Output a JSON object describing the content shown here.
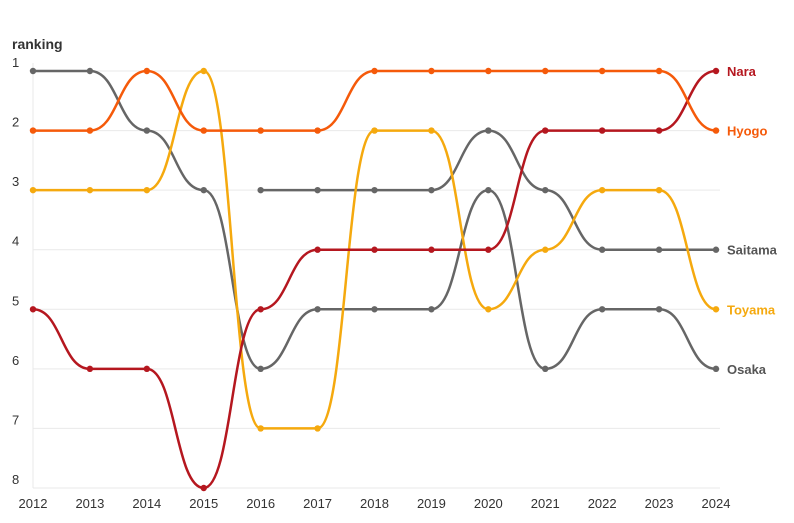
{
  "chart_data": {
    "type": "line",
    "title": "",
    "xlabel": "",
    "ylabel": "ranking",
    "x": [
      "2012",
      "2013",
      "2014",
      "2015",
      "2016",
      "2017",
      "2018",
      "2019",
      "2020",
      "2021",
      "2022",
      "2023",
      "2024"
    ],
    "y_ticks": [
      "1",
      "2",
      "3",
      "4",
      "5",
      "6",
      "7",
      "8"
    ],
    "ylim": [
      1,
      8
    ],
    "y_inverted": true,
    "grid": true,
    "legend": "labels at right end of lines",
    "series": [
      {
        "name": "Saitama",
        "color": "#666666",
        "values": [
          null,
          null,
          null,
          null,
          3,
          3,
          3,
          3,
          2,
          3,
          4,
          4,
          4
        ]
      },
      {
        "name": "Osaka",
        "color": "#666666",
        "values": [
          1,
          1,
          2,
          3,
          6,
          5,
          5,
          5,
          3,
          6,
          5,
          5,
          6
        ]
      },
      {
        "name": "Toyama",
        "color": "#f5a90e",
        "values": [
          3,
          3,
          3,
          1,
          7,
          7,
          2,
          2,
          5,
          4,
          3,
          3,
          5
        ]
      },
      {
        "name": "Nara",
        "color": "#b5171f",
        "values": [
          5,
          6,
          6,
          8,
          5,
          4,
          4,
          4,
          4,
          2,
          2,
          2,
          1
        ]
      },
      {
        "name": "Hyogo",
        "color": "#f55a0a",
        "values": [
          2,
          2,
          1,
          2,
          2,
          2,
          1,
          1,
          1,
          1,
          1,
          1,
          2
        ]
      }
    ]
  }
}
